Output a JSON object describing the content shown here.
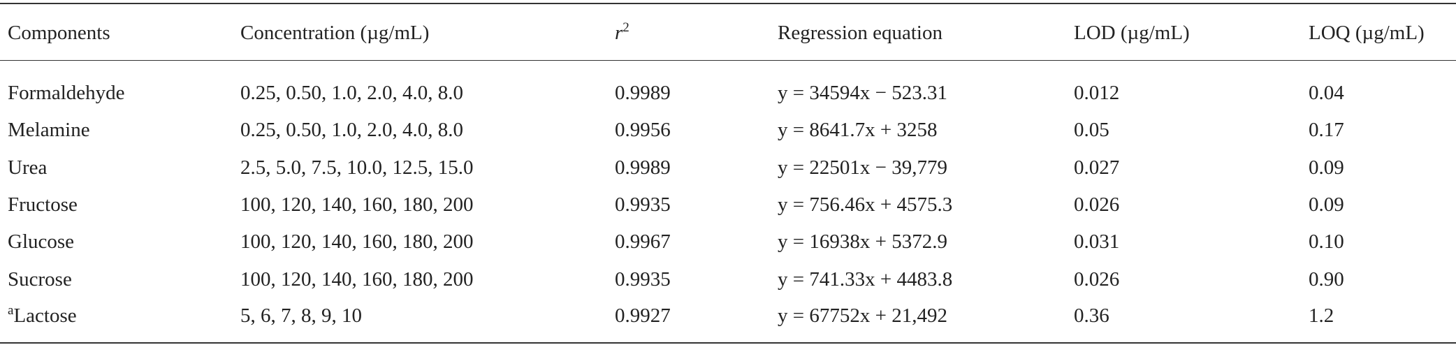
{
  "table": {
    "header": [
      "Components",
      "Concentration (µg/mL)",
      {
        "base": "r",
        "sup": "2"
      },
      "Regression equation",
      "LOD (µg/mL)",
      "LOQ (µg/mL)"
    ],
    "rows": [
      [
        "Formaldehyde",
        "0.25, 0.50, 1.0, 2.0, 4.0, 8.0",
        "0.9989",
        "y = 34594x − 523.31",
        "0.012",
        "0.04"
      ],
      [
        "Melamine",
        "0.25, 0.50, 1.0, 2.0, 4.0, 8.0",
        "0.9956",
        "y = 8641.7x + 3258",
        "0.05",
        "0.17"
      ],
      [
        "Urea",
        "2.5, 5.0, 7.5, 10.0, 12.5, 15.0",
        "0.9989",
        "y = 22501x − 39,779",
        "0.027",
        "0.09"
      ],
      [
        "Fructose",
        "100, 120, 140, 160, 180, 200",
        "0.9935",
        "y = 756.46x + 4575.3",
        "0.026",
        "0.09"
      ],
      [
        "Glucose",
        "100, 120, 140, 160, 180, 200",
        "0.9967",
        "y = 16938x + 5372.9",
        "0.031",
        "0.10"
      ],
      [
        "Sucrose",
        "100, 120, 140, 160, 180, 200",
        "0.9935",
        "y = 741.33x + 4483.8",
        "0.026",
        "0.90"
      ],
      [
        {
          "note": "a",
          "text": "Lactose"
        },
        "5, 6, 7, 8, 9, 10",
        "0.9927",
        "y = 67752x + 21,492",
        "0.36",
        "1.2"
      ]
    ]
  }
}
